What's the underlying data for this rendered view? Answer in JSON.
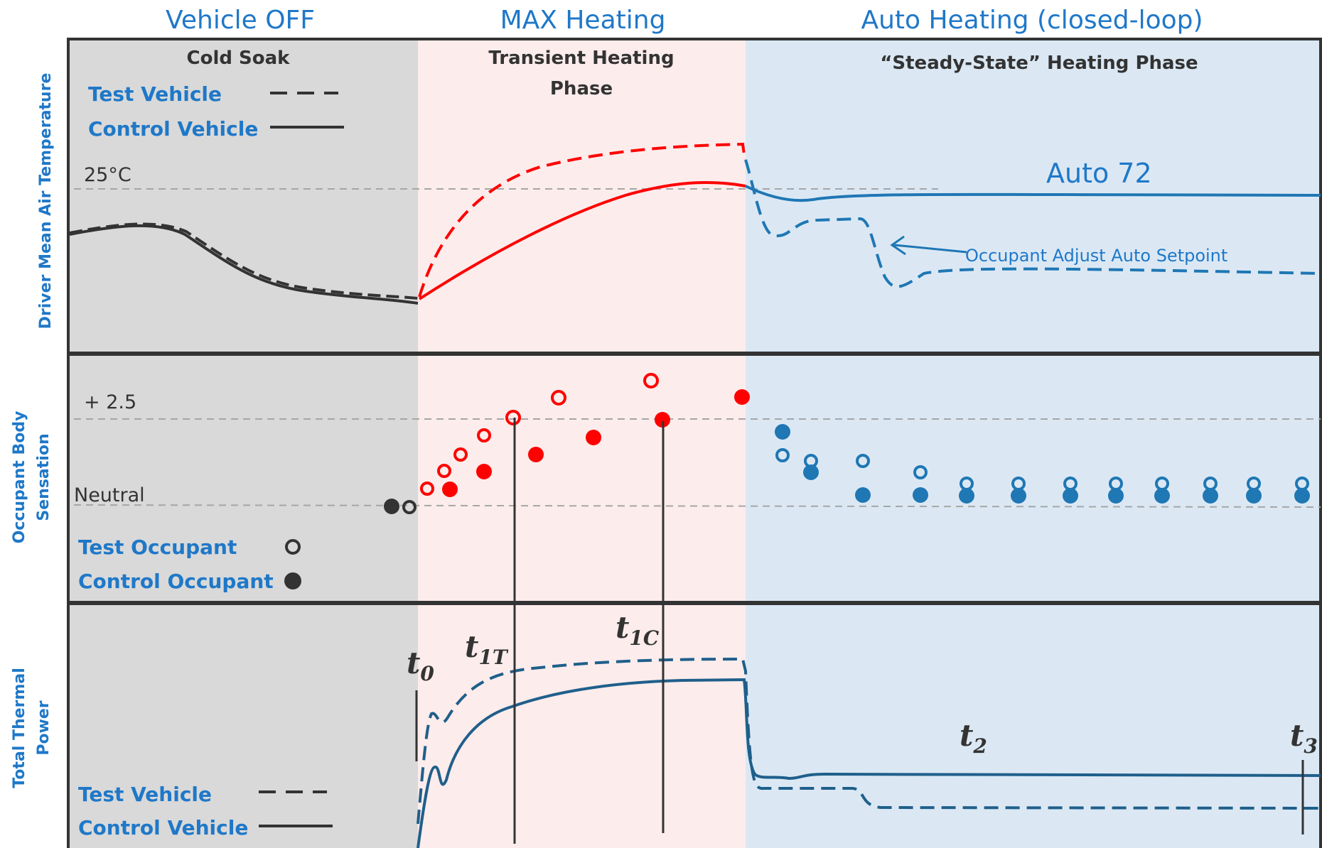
{
  "phases": {
    "off_title": "Vehicle OFF",
    "max_title": "MAX Heating",
    "auto_title": "Auto Heating (closed-loop)",
    "off_sub": "Cold Soak",
    "max_sub_line1": "Transient Heating",
    "max_sub_line2": "Phase",
    "auto_sub": "“Steady-State” Heating Phase"
  },
  "panel_top": {
    "ylabel": "Driver Mean Air Temperature",
    "ref_label": "25°C",
    "legend_test": "Test Vehicle",
    "legend_control": "Control Vehicle",
    "auto_label": "Auto 72",
    "annotation": "Occupant Adjust Auto Setpoint"
  },
  "panel_mid": {
    "ylabel_line1": "Occupant Body",
    "ylabel_line2": "Sensation",
    "ref_high": "+ 2.5",
    "ref_neutral": "Neutral",
    "legend_test": "Test Occupant",
    "legend_control": "Control Occupant"
  },
  "panel_bottom": {
    "ylabel_line1": "Total Thermal",
    "ylabel_line2": "Power",
    "legend_test": "Test Vehicle",
    "legend_control": "Control Vehicle",
    "t0": {
      "base": "t",
      "sub": "0"
    },
    "t1T": {
      "base": "t",
      "sub": "1T"
    },
    "t1C": {
      "base": "t",
      "sub": "1C"
    },
    "t2": {
      "base": "t",
      "sub": "2"
    },
    "t3": {
      "base": "t",
      "sub": "3"
    }
  },
  "colors": {
    "off_bg": "#d9d9d9",
    "max_bg": "#fdecec",
    "auto_bg": "#dbe8f4",
    "red": "#ff0000",
    "blue": "#1f77b4",
    "dark_blue": "#1f5f8b",
    "dark": "#333333",
    "grid": "#a6a6a6",
    "title_blue": "#1f78c8"
  }
}
